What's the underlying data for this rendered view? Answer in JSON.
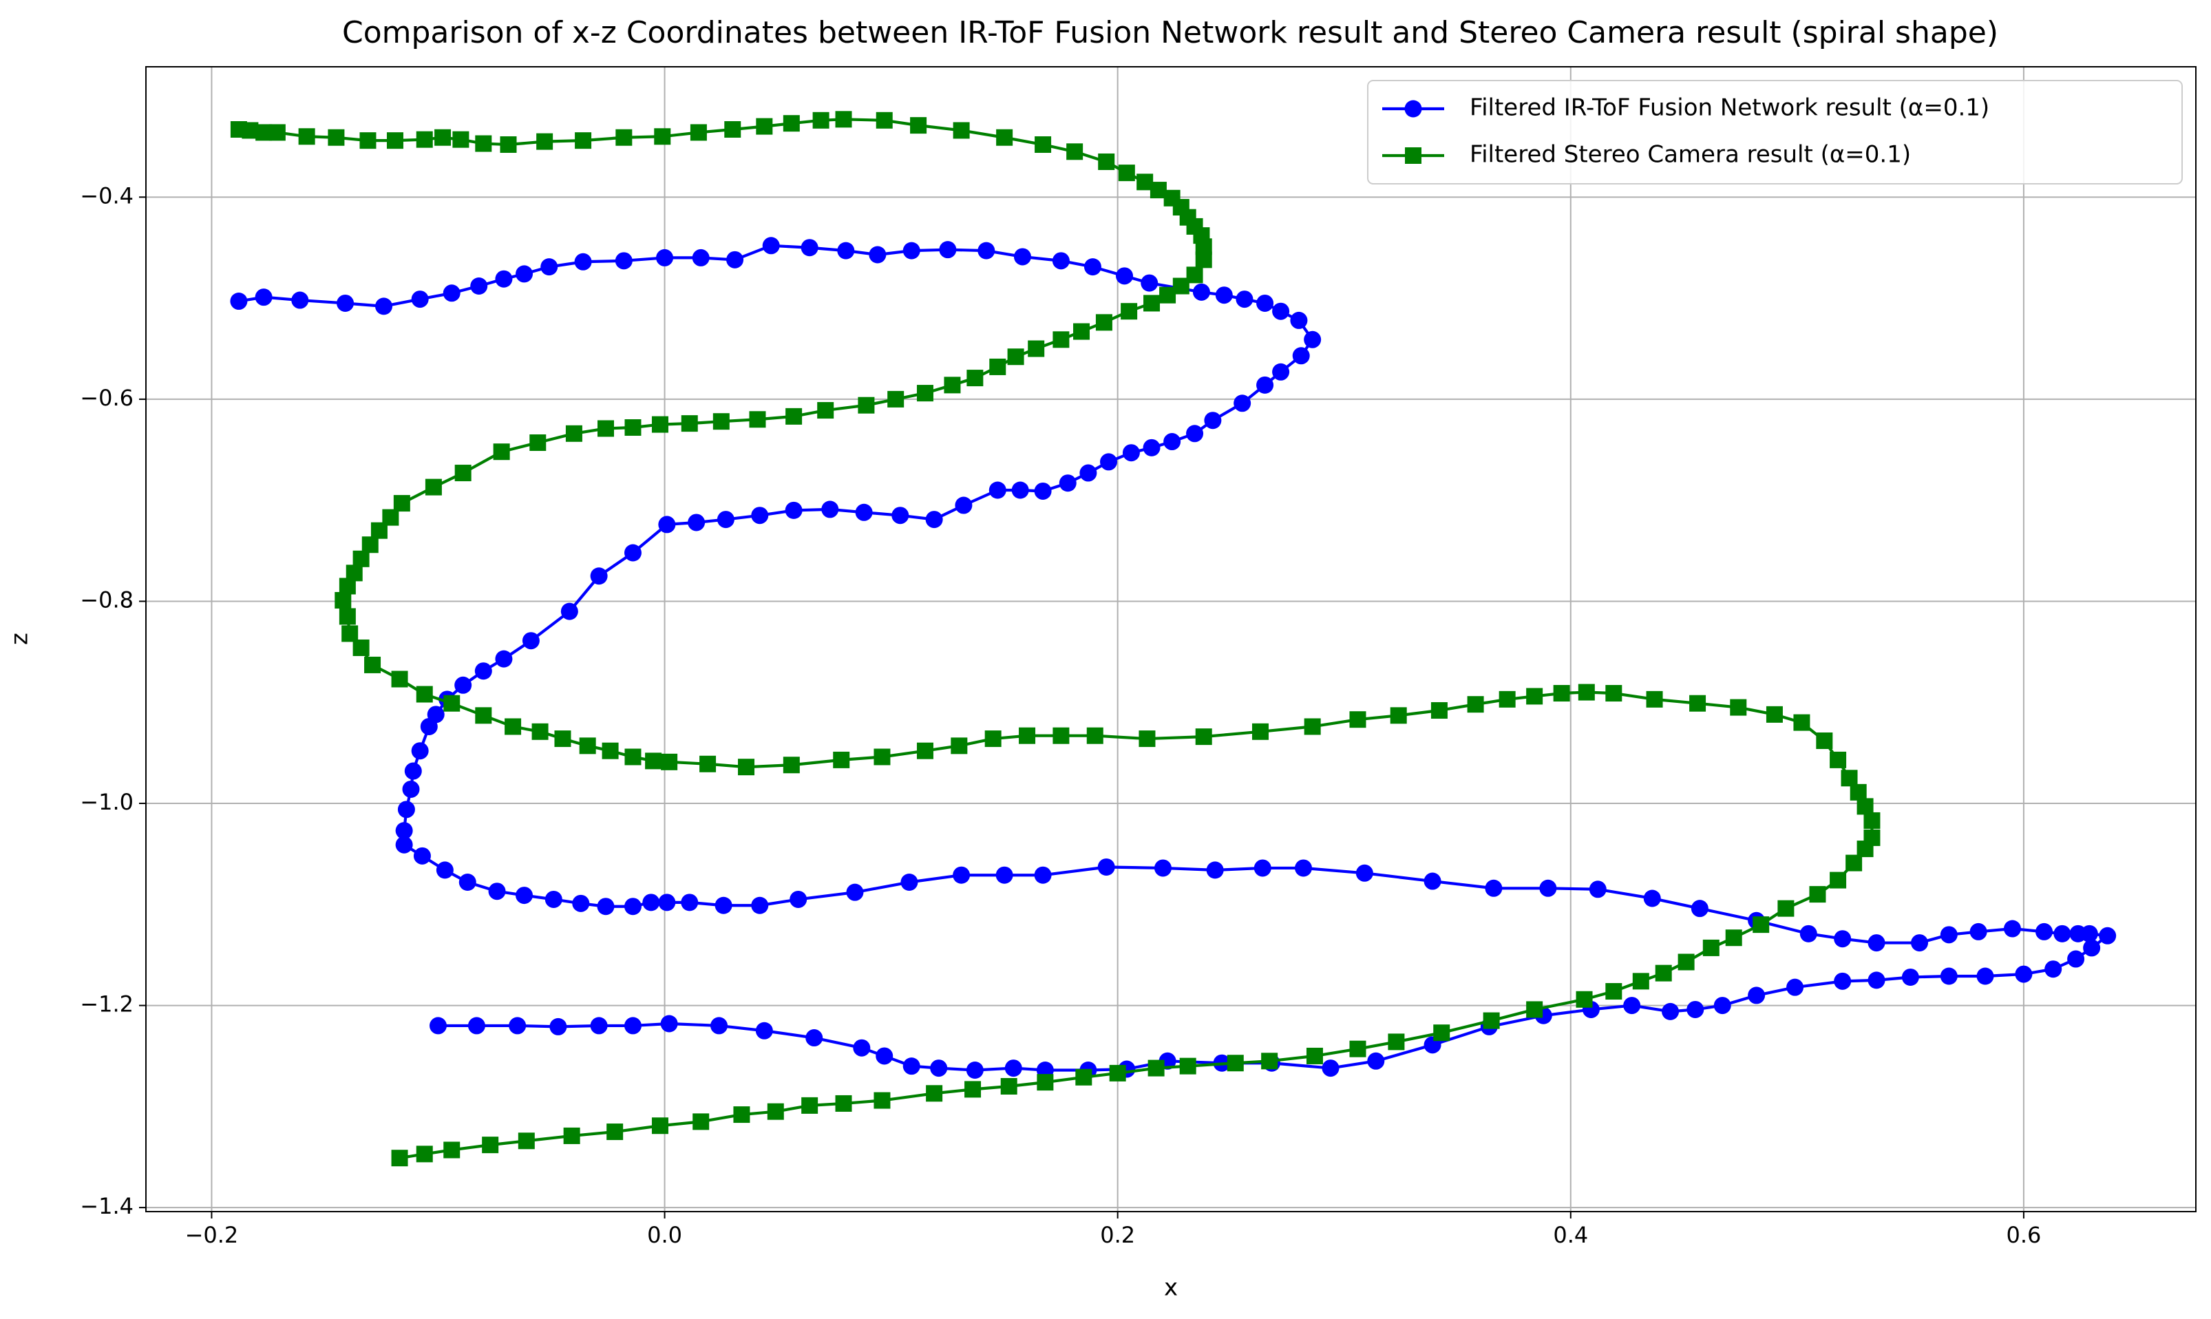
{
  "chart_data": {
    "type": "line",
    "title": "Comparison of x-z Coordinates between IR-ToF Fusion Network result and Stereo Camera result (spiral shape)",
    "x_label": "x",
    "y_label": "z",
    "xlim": [
      -0.229,
      0.676
    ],
    "ylim": [
      -1.404,
      -0.271
    ],
    "xticks": [
      {
        "value": -0.2,
        "label": "−0.2"
      },
      {
        "value": 0,
        "label": "0.0"
      },
      {
        "value": 0.2,
        "label": "0.2"
      },
      {
        "value": 0.4,
        "label": "0.4"
      },
      {
        "value": 0.6,
        "label": "0.6"
      }
    ],
    "yticks": [
      {
        "value": -0.4,
        "label": "−0.4"
      },
      {
        "value": -0.6,
        "label": "−0.6"
      },
      {
        "value": -0.8,
        "label": "−0.8"
      },
      {
        "value": -1.0,
        "label": "−1.0"
      },
      {
        "value": -1.2,
        "label": "−1.2"
      },
      {
        "value": -1.4,
        "label": "−1.4"
      }
    ],
    "grid": true,
    "legend": "upper right",
    "series": [
      {
        "name": "Filtered IR-ToF Fusion Network result (α=0.1)",
        "color": "#0000ff",
        "marker": "circle",
        "x": [
          -0.188,
          -0.177,
          -0.161,
          -0.141,
          -0.124,
          -0.108,
          -0.094,
          -0.082,
          -0.071,
          -0.062,
          -0.051,
          -0.036,
          -0.018,
          0.0,
          0.016,
          0.031,
          0.047,
          0.064,
          0.08,
          0.094,
          0.109,
          0.125,
          0.142,
          0.158,
          0.175,
          0.189,
          0.203,
          0.214,
          0.237,
          0.247,
          0.256,
          0.265,
          0.272,
          0.28,
          0.286,
          0.281,
          0.272,
          0.265,
          0.255,
          0.242,
          0.234,
          0.224,
          0.215,
          0.206,
          0.196,
          0.187,
          0.178,
          0.167,
          0.157,
          0.147,
          0.132,
          0.119,
          0.104,
          0.088,
          0.073,
          0.057,
          0.042,
          0.027,
          0.014,
          0.001,
          -0.014,
          -0.029,
          -0.042,
          -0.059,
          -0.071,
          -0.08,
          -0.089,
          -0.096,
          -0.101,
          -0.104,
          -0.108,
          -0.111,
          -0.112,
          -0.114,
          -0.115,
          -0.115,
          -0.107,
          -0.097,
          -0.087,
          -0.074,
          -0.062,
          -0.049,
          -0.037,
          -0.026,
          -0.014,
          -0.006,
          0.001,
          0.011,
          0.026,
          0.042,
          0.059,
          0.084,
          0.108,
          0.131,
          0.15,
          0.167,
          0.195,
          0.22,
          0.243,
          0.264,
          0.282,
          0.309,
          0.339,
          0.366,
          0.39,
          0.412,
          0.436,
          0.457,
          0.482,
          0.505,
          0.52,
          0.535,
          0.554,
          0.567,
          0.58,
          0.595,
          0.609,
          0.617,
          0.624,
          0.629,
          0.637,
          0.63,
          0.623,
          0.613,
          0.6,
          0.583,
          0.567,
          0.55,
          0.535,
          0.52,
          0.499,
          0.482,
          0.467,
          0.455,
          0.444,
          0.427,
          0.409,
          0.388,
          0.364,
          0.339,
          0.314,
          0.294,
          0.268,
          0.246,
          0.222,
          0.204,
          0.187,
          0.168,
          0.154,
          0.137,
          0.121,
          0.109,
          0.097,
          0.087,
          0.066,
          0.044,
          0.024,
          0.002,
          -0.014,
          -0.029,
          -0.047,
          -0.065,
          -0.083,
          -0.1
        ],
        "values": [
          -0.503,
          -0.499,
          -0.502,
          -0.505,
          -0.508,
          -0.501,
          -0.495,
          -0.488,
          -0.481,
          -0.476,
          -0.469,
          -0.464,
          -0.463,
          -0.46,
          -0.46,
          -0.462,
          -0.448,
          -0.45,
          -0.453,
          -0.457,
          -0.453,
          -0.452,
          -0.453,
          -0.459,
          -0.463,
          -0.469,
          -0.478,
          -0.485,
          -0.494,
          -0.497,
          -0.501,
          -0.505,
          -0.513,
          -0.522,
          -0.541,
          -0.557,
          -0.573,
          -0.586,
          -0.604,
          -0.621,
          -0.634,
          -0.642,
          -0.648,
          -0.653,
          -0.662,
          -0.673,
          -0.683,
          -0.691,
          -0.69,
          -0.69,
          -0.705,
          -0.719,
          -0.715,
          -0.712,
          -0.709,
          -0.71,
          -0.715,
          -0.719,
          -0.722,
          -0.724,
          -0.752,
          -0.775,
          -0.81,
          -0.839,
          -0.857,
          -0.869,
          -0.883,
          -0.897,
          -0.912,
          -0.924,
          -0.948,
          -0.968,
          -0.986,
          -1.006,
          -1.027,
          -1.041,
          -1.052,
          -1.066,
          -1.078,
          -1.087,
          -1.091,
          -1.095,
          -1.099,
          -1.102,
          -1.102,
          -1.098,
          -1.098,
          -1.098,
          -1.101,
          -1.101,
          -1.095,
          -1.088,
          -1.078,
          -1.071,
          -1.071,
          -1.071,
          -1.063,
          -1.064,
          -1.066,
          -1.064,
          -1.064,
          -1.069,
          -1.077,
          -1.084,
          -1.084,
          -1.085,
          -1.094,
          -1.104,
          -1.116,
          -1.129,
          -1.134,
          -1.138,
          -1.138,
          -1.13,
          -1.127,
          -1.124,
          -1.127,
          -1.129,
          -1.129,
          -1.129,
          -1.131,
          -1.143,
          -1.154,
          -1.164,
          -1.169,
          -1.171,
          -1.171,
          -1.172,
          -1.175,
          -1.176,
          -1.182,
          -1.19,
          -1.2,
          -1.204,
          -1.206,
          -1.2,
          -1.204,
          -1.21,
          -1.221,
          -1.239,
          -1.255,
          -1.262,
          -1.257,
          -1.257,
          -1.255,
          -1.263,
          -1.264,
          -1.264,
          -1.262,
          -1.264,
          -1.262,
          -1.26,
          -1.25,
          -1.242,
          -1.232,
          -1.225,
          -1.22,
          -1.218,
          -1.22,
          -1.22,
          -1.221,
          -1.22,
          -1.22,
          -1.22
        ]
      },
      {
        "name": "Filtered Stereo Camera result (α=0.1)",
        "color": "#008000",
        "marker": "square",
        "x": [
          -0.188,
          -0.183,
          -0.177,
          -0.171,
          -0.158,
          -0.145,
          -0.131,
          -0.119,
          -0.106,
          -0.098,
          -0.09,
          -0.08,
          -0.069,
          -0.053,
          -0.036,
          -0.018,
          -0.001,
          0.015,
          0.03,
          0.044,
          0.056,
          0.069,
          0.079,
          0.097,
          0.112,
          0.131,
          0.15,
          0.167,
          0.181,
          0.195,
          0.204,
          0.212,
          0.218,
          0.224,
          0.228,
          0.231,
          0.234,
          0.237,
          0.238,
          0.238,
          0.234,
          0.228,
          0.222,
          0.215,
          0.205,
          0.194,
          0.184,
          0.175,
          0.164,
          0.155,
          0.147,
          0.137,
          0.127,
          0.115,
          0.102,
          0.089,
          0.071,
          0.057,
          0.041,
          0.025,
          0.011,
          -0.002,
          -0.014,
          -0.026,
          -0.04,
          -0.056,
          -0.072,
          -0.089,
          -0.102,
          -0.116,
          -0.121,
          -0.126,
          -0.13,
          -0.134,
          -0.137,
          -0.14,
          -0.142,
          -0.14,
          -0.139,
          -0.134,
          -0.129,
          -0.117,
          -0.106,
          -0.094,
          -0.08,
          -0.067,
          -0.055,
          -0.045,
          -0.034,
          -0.024,
          -0.014,
          -0.005,
          0.002,
          0.019,
          0.036,
          0.056,
          0.078,
          0.096,
          0.115,
          0.13,
          0.145,
          0.16,
          0.175,
          0.19,
          0.213,
          0.238,
          0.263,
          0.286,
          0.306,
          0.324,
          0.342,
          0.358,
          0.372,
          0.384,
          0.396,
          0.407,
          0.419,
          0.437,
          0.456,
          0.474,
          0.49,
          0.502,
          0.512,
          0.518,
          0.523,
          0.527,
          0.53,
          0.533,
          0.533,
          0.53,
          0.525,
          0.518,
          0.509,
          0.495,
          0.484,
          0.472,
          0.462,
          0.451,
          0.441,
          0.431,
          0.419,
          0.406,
          0.384,
          0.365,
          0.343,
          0.323,
          0.306,
          0.287,
          0.267,
          0.252,
          0.231,
          0.217,
          0.2,
          0.185,
          0.168,
          0.152,
          0.136,
          0.119,
          0.096,
          0.079,
          0.064,
          0.049,
          0.034,
          0.016,
          -0.002,
          -0.022,
          -0.041,
          -0.061,
          -0.077,
          -0.094,
          -0.106,
          -0.117
        ],
        "values": [
          -0.333,
          -0.334,
          -0.336,
          -0.336,
          -0.34,
          -0.341,
          -0.344,
          -0.344,
          -0.343,
          -0.341,
          -0.343,
          -0.347,
          -0.348,
          -0.345,
          -0.344,
          -0.341,
          -0.34,
          -0.336,
          -0.333,
          -0.33,
          -0.327,
          -0.324,
          -0.323,
          -0.324,
          -0.329,
          -0.334,
          -0.341,
          -0.348,
          -0.355,
          -0.365,
          -0.376,
          -0.385,
          -0.393,
          -0.401,
          -0.41,
          -0.42,
          -0.429,
          -0.438,
          -0.449,
          -0.462,
          -0.477,
          -0.488,
          -0.497,
          -0.505,
          -0.513,
          -0.524,
          -0.533,
          -0.541,
          -0.55,
          -0.558,
          -0.568,
          -0.579,
          -0.586,
          -0.594,
          -0.6,
          -0.606,
          -0.611,
          -0.617,
          -0.62,
          -0.622,
          -0.624,
          -0.625,
          -0.628,
          -0.629,
          -0.634,
          -0.643,
          -0.652,
          -0.673,
          -0.687,
          -0.703,
          -0.717,
          -0.73,
          -0.744,
          -0.758,
          -0.772,
          -0.785,
          -0.799,
          -0.815,
          -0.832,
          -0.846,
          -0.863,
          -0.877,
          -0.892,
          -0.901,
          -0.913,
          -0.924,
          -0.929,
          -0.936,
          -0.943,
          -0.948,
          -0.954,
          -0.958,
          -0.959,
          -0.961,
          -0.964,
          -0.962,
          -0.957,
          -0.954,
          -0.948,
          -0.943,
          -0.936,
          -0.933,
          -0.933,
          -0.933,
          -0.936,
          -0.934,
          -0.929,
          -0.924,
          -0.917,
          -0.913,
          -0.908,
          -0.902,
          -0.897,
          -0.894,
          -0.891,
          -0.89,
          -0.891,
          -0.897,
          -0.901,
          -0.905,
          -0.912,
          -0.92,
          -0.938,
          -0.957,
          -0.975,
          -0.989,
          -1.003,
          -1.017,
          -1.034,
          -1.045,
          -1.059,
          -1.076,
          -1.09,
          -1.104,
          -1.12,
          -1.133,
          -1.143,
          -1.157,
          -1.168,
          -1.176,
          -1.186,
          -1.194,
          -1.204,
          -1.215,
          -1.227,
          -1.236,
          -1.243,
          -1.25,
          -1.255,
          -1.257,
          -1.26,
          -1.262,
          -1.267,
          -1.271,
          -1.276,
          -1.28,
          -1.283,
          -1.287,
          -1.294,
          -1.297,
          -1.299,
          -1.305,
          -1.308,
          -1.315,
          -1.319,
          -1.325,
          -1.329,
          -1.334,
          -1.338,
          -1.343,
          -1.347,
          -1.351
        ]
      }
    ]
  }
}
